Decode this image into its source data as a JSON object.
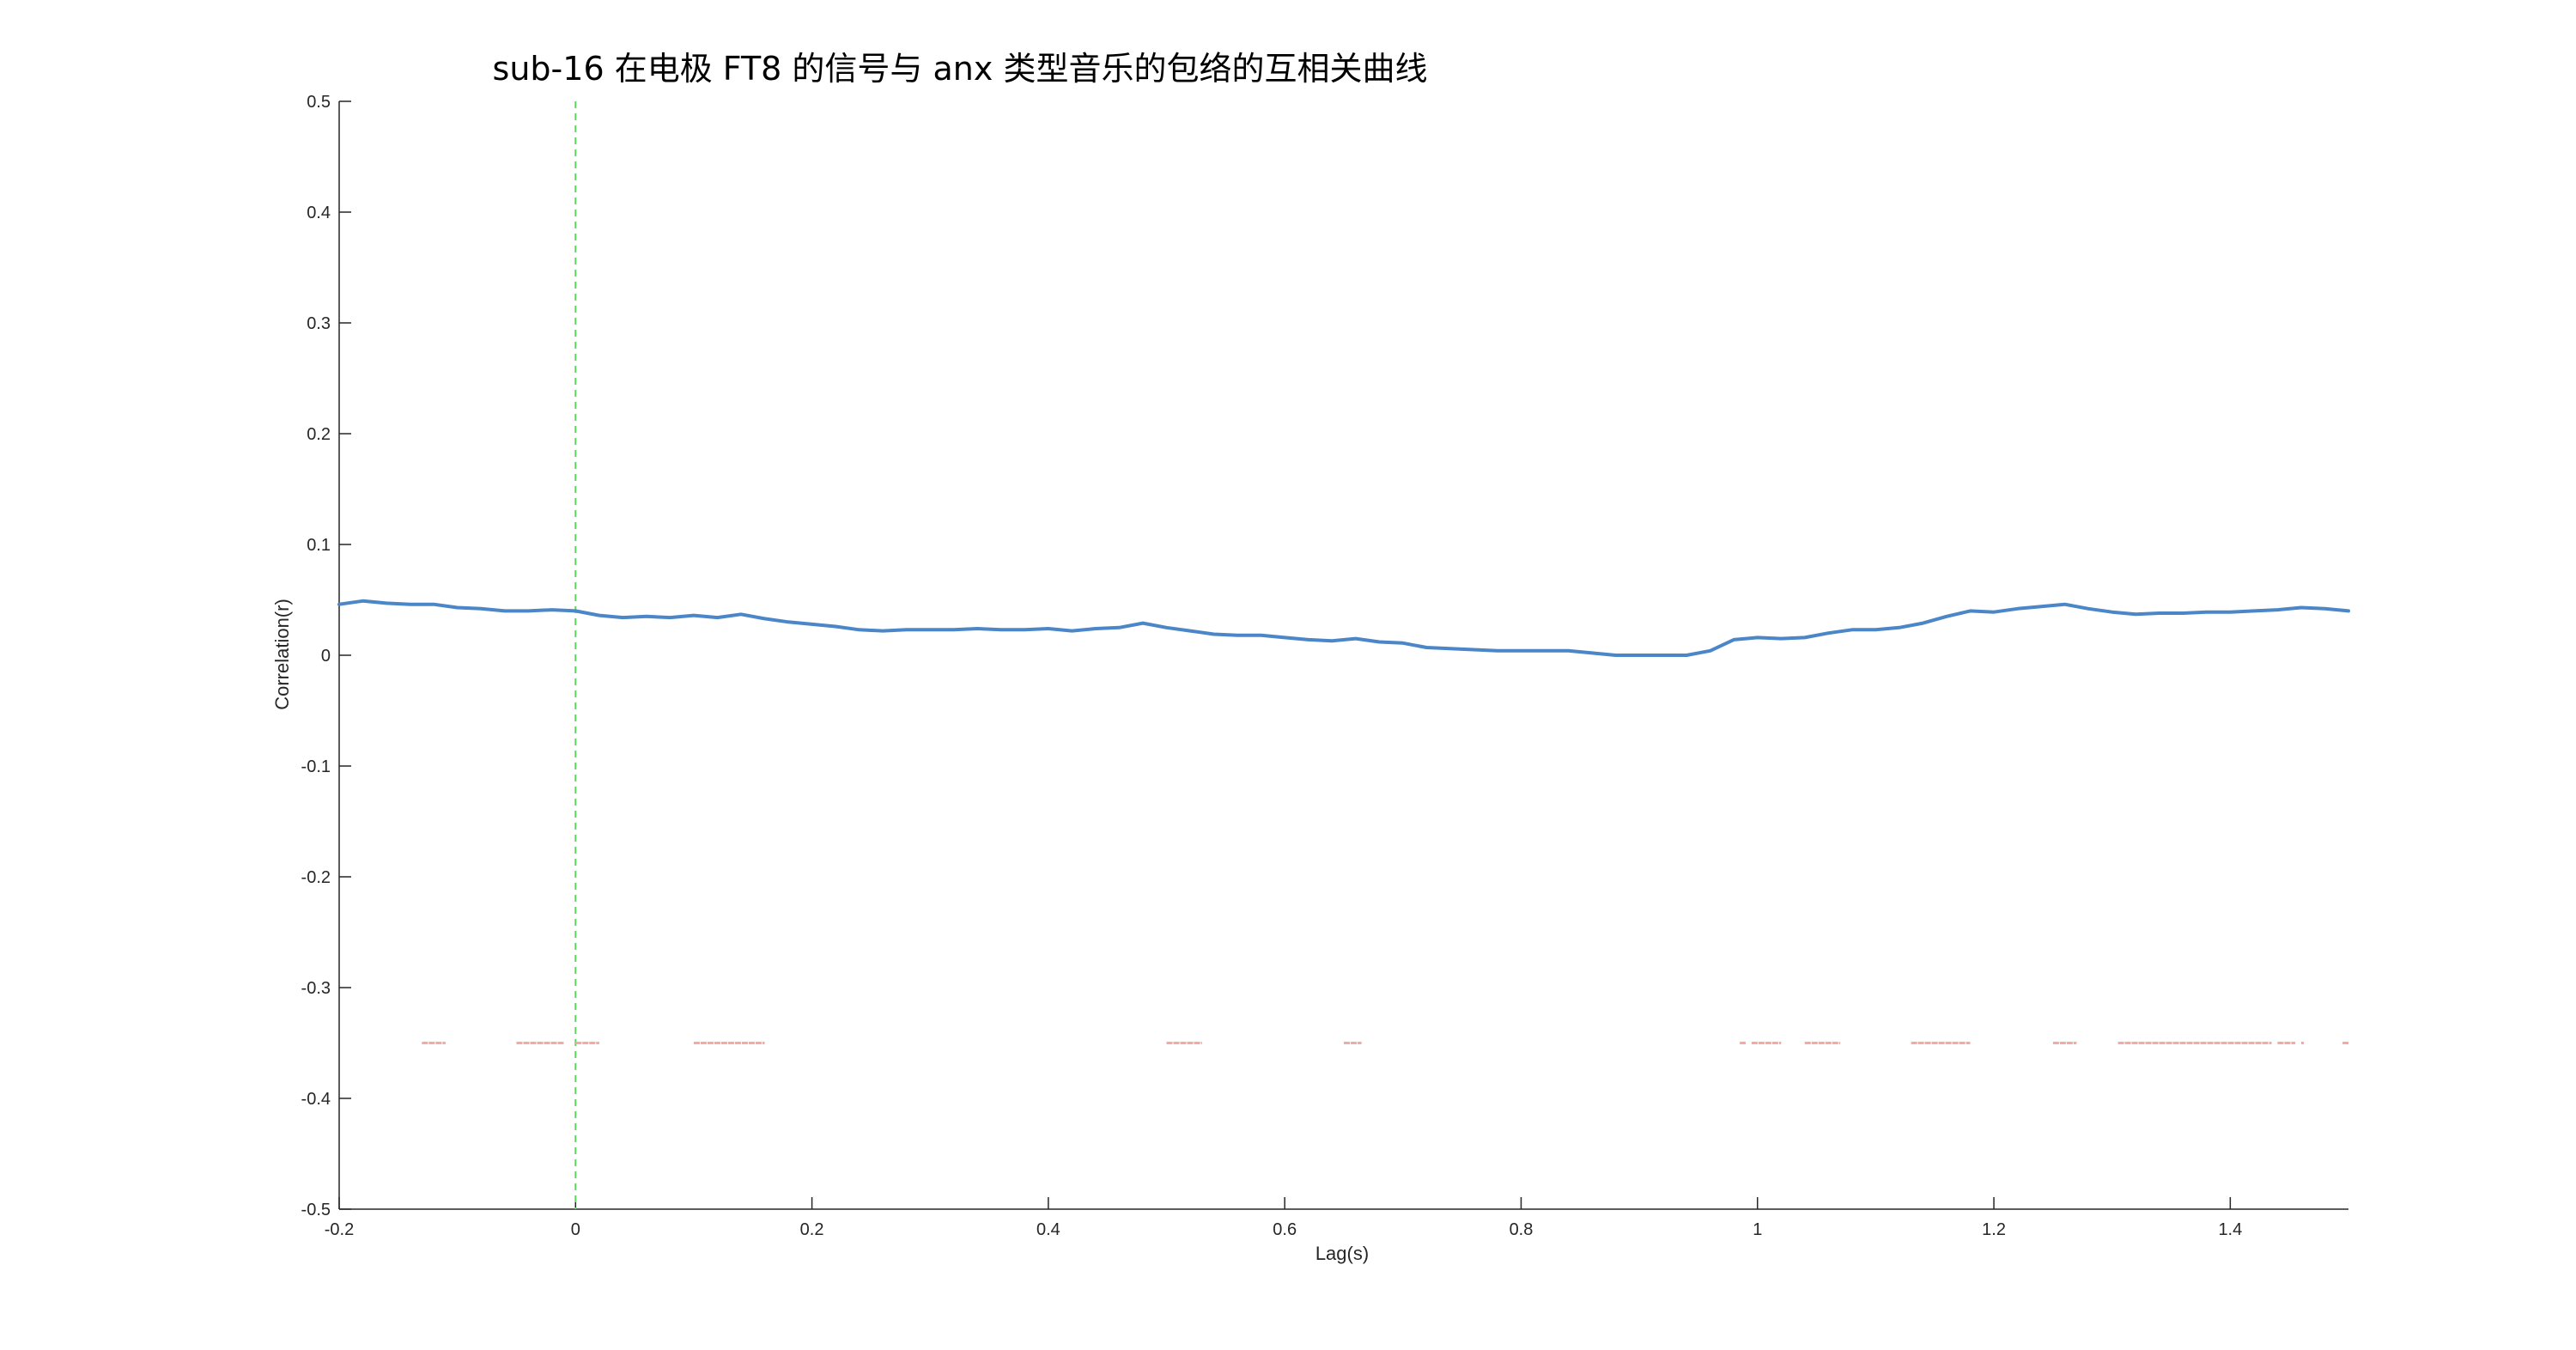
{
  "chart_data": {
    "type": "line",
    "title": "sub-16 在电极 FT8 的信号与 anx 类型音乐的包络的互相关曲线",
    "xlabel": "Lag(s)",
    "ylabel": "Correlation(r)",
    "xlim": [
      -0.2,
      1.5
    ],
    "ylim": [
      -0.5,
      0.5
    ],
    "xticks": [
      -0.2,
      0,
      0.2,
      0.4,
      0.6,
      0.8,
      1,
      1.2,
      1.4
    ],
    "xtick_labels": [
      "-0.2",
      "0",
      "0.2",
      "0.4",
      "0.6",
      "0.8",
      "1",
      "1.2",
      "1.4"
    ],
    "yticks": [
      -0.5,
      -0.4,
      -0.3,
      -0.2,
      -0.1,
      0,
      0.1,
      0.2,
      0.3,
      0.4,
      0.5
    ],
    "ytick_labels": [
      "-0.5",
      "-0.4",
      "-0.3",
      "-0.2",
      "-0.1",
      "0",
      "0.1",
      "0.2",
      "0.3",
      "0.4",
      "0.5"
    ],
    "grid": false,
    "series": [
      {
        "color": "#4a86c8",
        "x": [
          -0.2,
          -0.18,
          -0.16,
          -0.14,
          -0.12,
          -0.1,
          -0.08,
          -0.06,
          -0.04,
          -0.02,
          0,
          0.02,
          0.04,
          0.06,
          0.08,
          0.1,
          0.12,
          0.14,
          0.16,
          0.18,
          0.2,
          0.22,
          0.24,
          0.26,
          0.28,
          0.3,
          0.32,
          0.34,
          0.36,
          0.38,
          0.4,
          0.42,
          0.44,
          0.46,
          0.48,
          0.5,
          0.52,
          0.54,
          0.56,
          0.58,
          0.6,
          0.62,
          0.64,
          0.66,
          0.68,
          0.7,
          0.72,
          0.74,
          0.76,
          0.78,
          0.8,
          0.82,
          0.84,
          0.86,
          0.88,
          0.9,
          0.92,
          0.94,
          0.96,
          0.98,
          1,
          1.02,
          1.04,
          1.06,
          1.08,
          1.1,
          1.12,
          1.14,
          1.16,
          1.18,
          1.2,
          1.22,
          1.24,
          1.26,
          1.28,
          1.3,
          1.32,
          1.34,
          1.36,
          1.38,
          1.4,
          1.42,
          1.44,
          1.46,
          1.48,
          1.5
        ],
        "y": [
          0.046,
          0.049,
          0.047,
          0.046,
          0.046,
          0.043,
          0.042,
          0.04,
          0.04,
          0.041,
          0.04,
          0.036,
          0.034,
          0.035,
          0.034,
          0.036,
          0.034,
          0.037,
          0.033,
          0.03,
          0.028,
          0.026,
          0.023,
          0.022,
          0.023,
          0.023,
          0.023,
          0.024,
          0.023,
          0.023,
          0.024,
          0.022,
          0.024,
          0.025,
          0.029,
          0.025,
          0.022,
          0.019,
          0.018,
          0.018,
          0.016,
          0.014,
          0.013,
          0.015,
          0.012,
          0.011,
          0.007,
          0.006,
          0.005,
          0.004,
          0.004,
          0.004,
          0.004,
          0.002,
          0.0,
          0.0,
          0.0,
          0.0,
          0.004,
          0.014,
          0.016,
          0.015,
          0.016,
          0.02,
          0.023,
          0.023,
          0.025,
          0.029,
          0.035,
          0.04,
          0.039,
          0.042,
          0.044,
          0.046,
          0.042,
          0.039,
          0.037,
          0.038,
          0.038,
          0.039,
          0.039,
          0.04,
          0.041,
          0.043,
          0.042,
          0.04
        ]
      }
    ],
    "reference_line": {
      "x": 0,
      "style": "dashed",
      "color": "#5fd35f"
    },
    "significance_marks": {
      "y": -0.35,
      "color": "#f4a9a3",
      "intervals": [
        [
          -0.13,
          -0.11
        ],
        [
          -0.05,
          -0.01
        ],
        [
          0,
          0.02
        ],
        [
          0.1,
          0.16
        ],
        [
          0.5,
          0.53
        ],
        [
          0.65,
          0.665
        ],
        [
          0.985,
          0.99
        ],
        [
          0.995,
          1.02
        ],
        [
          1.04,
          1.07
        ],
        [
          1.13,
          1.18
        ],
        [
          1.25,
          1.27
        ],
        [
          1.305,
          1.435
        ],
        [
          1.44,
          1.455
        ],
        [
          1.46,
          1.462
        ],
        [
          1.495,
          1.5
        ]
      ]
    }
  }
}
